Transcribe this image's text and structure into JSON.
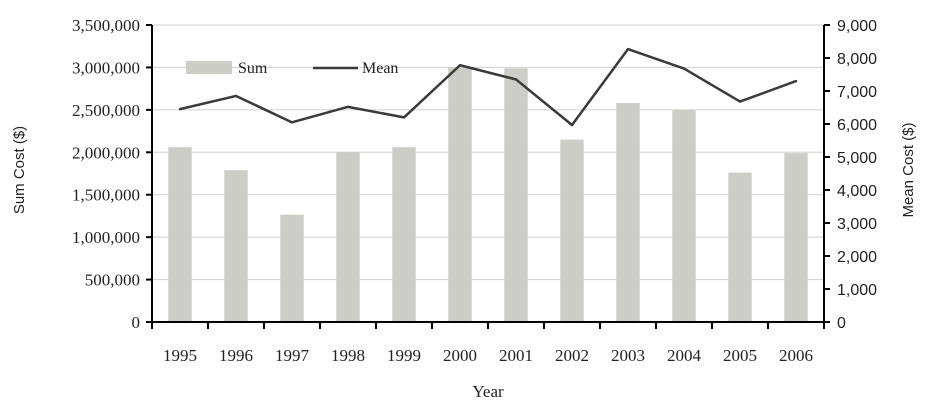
{
  "chart_data": {
    "type": "bar",
    "categories": [
      "1995",
      "1996",
      "1997",
      "1998",
      "1999",
      "2000",
      "2001",
      "2002",
      "2003",
      "2004",
      "2005",
      "2006"
    ],
    "series": [
      {
        "name": "Sum",
        "type": "bar",
        "axis": "left",
        "values": [
          2060000,
          1790000,
          1265000,
          2000000,
          2060000,
          3000000,
          2990000,
          2150000,
          2580000,
          2500000,
          1760000,
          1990000
        ]
      },
      {
        "name": "Mean",
        "type": "line",
        "axis": "right",
        "values": [
          6450,
          6850,
          6050,
          6520,
          6200,
          7780,
          7350,
          5970,
          8270,
          7680,
          6680,
          7300
        ]
      }
    ],
    "xlabel": "Year",
    "ylabel": "Sum Cost ($)",
    "y2label": "Mean Cost ($)",
    "ylim": [
      0,
      3500000
    ],
    "y2lim": [
      0,
      9000
    ],
    "yticks": [
      "0",
      "500,000",
      "1,000,000",
      "1,500,000",
      "2,000,000",
      "2,500,000",
      "3,000,000",
      "3,500,000"
    ],
    "y2ticks": [
      "0",
      "1,000",
      "2,000",
      "3,000",
      "4,000",
      "5,000",
      "6,000",
      "7,000",
      "8,000",
      "9,000"
    ],
    "grid": true,
    "legend": "top-left",
    "colors": {
      "bar": "#cdcdc8",
      "line": "#3a3a3a",
      "grid": "#d0d0d0",
      "axis": "#000000"
    }
  }
}
